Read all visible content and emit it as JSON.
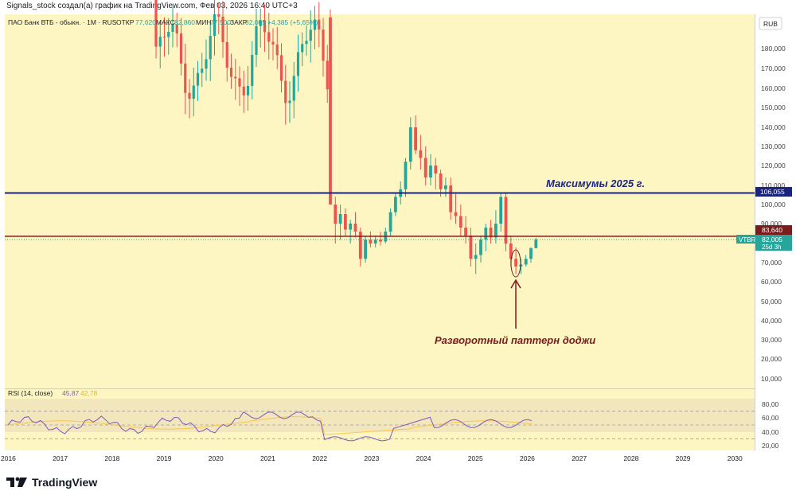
{
  "header": {
    "author_line": "Signals_stock создал(а) график на TradingView.com, Фев 03, 2026 16:40 UTC+3"
  },
  "legend": {
    "symbol": "ПАО Банк ВТБ - обыкн. · 1М · RUS",
    "open_label": "ОТКР",
    "open_value": "77,620",
    "high_label": "МАКС",
    "high_value": "82,860",
    "low_label": "МИН",
    "low_value": "77,500",
    "close_label": "ЗАКР",
    "close_value": "82,005",
    "change": "+4,385 (+5,65%)"
  },
  "currency": "RUB",
  "annotations": {
    "max_2025": "Максимумы 2025 г.",
    "doji": "Разворотный паттерн доджи"
  },
  "price_tags": {
    "blue_line": "106,055",
    "red_line": "83,640",
    "ticker": "VTBR",
    "last_price": "82,005",
    "countdown": "25d 3h"
  },
  "rsi": {
    "label": "RSI (14, close)",
    "value1": "45,87",
    "value2": "42,78",
    "axis_ticks": [
      "80,00",
      "60,00",
      "40,00",
      "20,00"
    ]
  },
  "branding": {
    "logo_text": "TradingView"
  },
  "colors": {
    "background": "#fdf6c3",
    "bull": "#26a69a",
    "bear": "#ef5350",
    "resistance_line": "#1a237e",
    "support_line": "#7b1c1c",
    "annotation_blue": "#1a237e",
    "annotation_red": "#7b1c1c",
    "rsi_line": "#7e57c2",
    "rsi_ma": "#f9c74f"
  },
  "chart_data": {
    "type": "candlestick",
    "y_scale": "log",
    "price_ticks": [
      "180,000",
      "170,000",
      "160,000",
      "150,000",
      "140,000",
      "130,000",
      "120,000",
      "110,000",
      "100,000",
      "90,000",
      "80,000",
      "70,000",
      "60,000",
      "50,000",
      "40,000",
      "30,000",
      "20,000",
      "10,000"
    ],
    "x_ticks": [
      "2016",
      "2017",
      "2018",
      "2019",
      "2020",
      "2021",
      "2022",
      "2023",
      "2024",
      "2025",
      "2026",
      "2027",
      "2028",
      "2029",
      "2030"
    ],
    "horizontal_lines": [
      {
        "value": 106.055,
        "label": "106,055"
      },
      {
        "value": 83.64,
        "label": "83,640"
      }
    ],
    "candles_2022_2026": [
      {
        "o": 196,
        "h": 200,
        "l": 100,
        "c": 100
      },
      {
        "o": 100,
        "h": 104,
        "l": 80,
        "c": 90
      },
      {
        "o": 90,
        "h": 100,
        "l": 82,
        "c": 95
      },
      {
        "o": 95,
        "h": 98,
        "l": 84,
        "c": 87
      },
      {
        "o": 87,
        "h": 92,
        "l": 80,
        "c": 90
      },
      {
        "o": 90,
        "h": 96,
        "l": 83,
        "c": 86
      },
      {
        "o": 86,
        "h": 88,
        "l": 68,
        "c": 72
      },
      {
        "o": 72,
        "h": 84,
        "l": 70,
        "c": 82
      },
      {
        "o": 82,
        "h": 86,
        "l": 78,
        "c": 80
      },
      {
        "o": 80,
        "h": 84,
        "l": 78,
        "c": 82
      },
      {
        "o": 82,
        "h": 86,
        "l": 79,
        "c": 81
      },
      {
        "o": 81,
        "h": 88,
        "l": 80,
        "c": 86
      },
      {
        "o": 86,
        "h": 98,
        "l": 84,
        "c": 96
      },
      {
        "o": 96,
        "h": 106,
        "l": 94,
        "c": 104
      },
      {
        "o": 104,
        "h": 112,
        "l": 100,
        "c": 108
      },
      {
        "o": 108,
        "h": 124,
        "l": 104,
        "c": 122
      },
      {
        "o": 122,
        "h": 145,
        "l": 118,
        "c": 140
      },
      {
        "o": 140,
        "h": 146,
        "l": 126,
        "c": 128
      },
      {
        "o": 128,
        "h": 136,
        "l": 118,
        "c": 124
      },
      {
        "o": 124,
        "h": 130,
        "l": 110,
        "c": 114
      },
      {
        "o": 114,
        "h": 126,
        "l": 110,
        "c": 120
      },
      {
        "o": 120,
        "h": 124,
        "l": 108,
        "c": 116
      },
      {
        "o": 116,
        "h": 118,
        "l": 104,
        "c": 108
      },
      {
        "o": 108,
        "h": 114,
        "l": 104,
        "c": 110
      },
      {
        "o": 110,
        "h": 114,
        "l": 92,
        "c": 96
      },
      {
        "o": 96,
        "h": 106,
        "l": 90,
        "c": 94
      },
      {
        "o": 94,
        "h": 100,
        "l": 84,
        "c": 88
      },
      {
        "o": 88,
        "h": 94,
        "l": 80,
        "c": 84
      },
      {
        "o": 84,
        "h": 88,
        "l": 68,
        "c": 72
      },
      {
        "o": 72,
        "h": 80,
        "l": 64,
        "c": 74
      },
      {
        "o": 74,
        "h": 84,
        "l": 70,
        "c": 82
      },
      {
        "o": 82,
        "h": 90,
        "l": 76,
        "c": 88
      },
      {
        "o": 88,
        "h": 92,
        "l": 80,
        "c": 83
      },
      {
        "o": 83,
        "h": 97,
        "l": 80,
        "c": 90
      },
      {
        "o": 90,
        "h": 106,
        "l": 86,
        "c": 104
      },
      {
        "o": 104,
        "h": 106,
        "l": 76,
        "c": 80
      },
      {
        "o": 80,
        "h": 84,
        "l": 68,
        "c": 72
      },
      {
        "o": 72,
        "h": 78,
        "l": 64,
        "c": 68
      },
      {
        "o": 68,
        "h": 72,
        "l": 64,
        "c": 69
      },
      {
        "o": 69,
        "h": 74,
        "l": 68,
        "c": 72
      },
      {
        "o": 72,
        "h": 78,
        "l": 70,
        "c": 77.6
      },
      {
        "o": 77.6,
        "h": 82.86,
        "l": 77.5,
        "c": 82.005
      }
    ]
  }
}
